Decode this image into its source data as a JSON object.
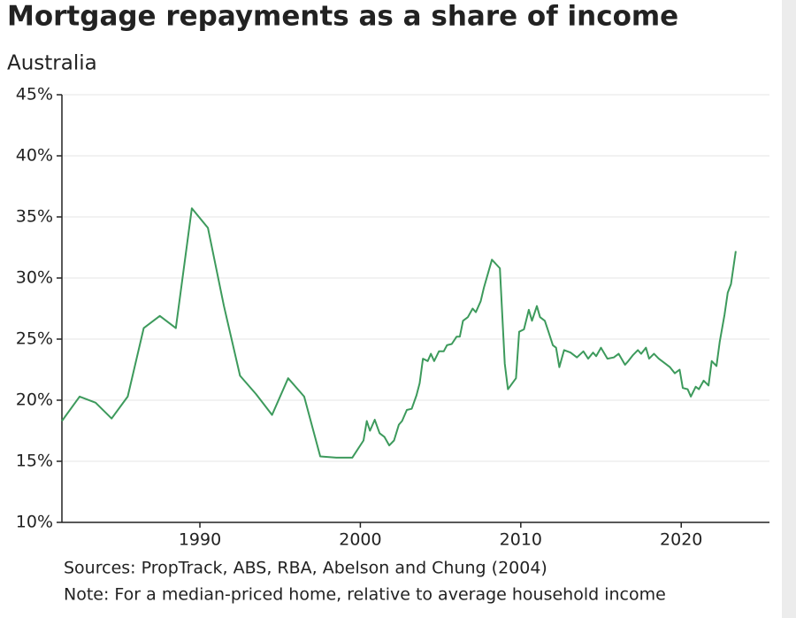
{
  "chart_data": {
    "type": "line",
    "title": "Mortgage repayments as a share of income",
    "subtitle": "Australia",
    "notes": [
      "Sources: PropTrack, ABS, RBA, Abelson and Chung (2004)",
      "Note: For a median-priced home, relative to average household income"
    ],
    "xlim": [
      1981.4,
      2025.5
    ],
    "xticks": [
      1990,
      2000,
      2010,
      2020
    ],
    "ylim": [
      10,
      45
    ],
    "yticks": [
      {
        "value": 10,
        "label": "10%"
      },
      {
        "value": 15,
        "label": "15%"
      },
      {
        "value": 20,
        "label": "20%"
      },
      {
        "value": 25,
        "label": "25%"
      },
      {
        "value": 30,
        "label": "30%"
      },
      {
        "value": 35,
        "label": "35%"
      },
      {
        "value": 40,
        "label": "40%"
      },
      {
        "value": 45,
        "label": "45%"
      }
    ],
    "grid": true,
    "series": [
      {
        "color": "#3d9a5c",
        "x": [
          1981.4,
          1982.5,
          1983.5,
          1984.5,
          1985.5,
          1986.5,
          1987.5,
          1988.5,
          1989.5,
          1990.5,
          1991.5,
          1992.5,
          1993.5,
          1994.5,
          1995.5,
          1996.5,
          1997.5,
          1998.5,
          1999.5,
          2000.2,
          2000.4,
          2000.6,
          2000.9,
          2001.2,
          2001.5,
          2001.8,
          2002.1,
          2002.4,
          2002.6,
          2002.9,
          2003.2,
          2003.5,
          2003.7,
          2003.9,
          2004.2,
          2004.4,
          2004.6,
          2004.9,
          2005.2,
          2005.4,
          2005.7,
          2006.0,
          2006.2,
          2006.4,
          2006.7,
          2007.0,
          2007.2,
          2007.5,
          2007.7,
          2008.2,
          2008.7,
          2009.0,
          2009.2,
          2009.7,
          2009.9,
          2010.2,
          2010.5,
          2010.7,
          2011.0,
          2011.2,
          2011.5,
          2011.7,
          2012.0,
          2012.2,
          2012.4,
          2012.7,
          2013.1,
          2013.5,
          2013.9,
          2014.2,
          2014.5,
          2014.7,
          2015.0,
          2015.4,
          2015.8,
          2016.1,
          2016.5,
          2016.7,
          2017.0,
          2017.3,
          2017.5,
          2017.8,
          2018.0,
          2018.3,
          2018.6,
          2019.0,
          2019.3,
          2019.6,
          2019.9,
          2020.1,
          2020.4,
          2020.6,
          2020.9,
          2021.1,
          2021.4,
          2021.7,
          2021.9,
          2022.2,
          2022.4,
          2022.7,
          2022.9,
          2023.1,
          2023.4
        ],
        "values": [
          18.3,
          20.3,
          19.8,
          18.5,
          20.3,
          25.9,
          26.9,
          25.9,
          35.7,
          34.1,
          27.7,
          22.0,
          20.5,
          18.8,
          21.8,
          20.3,
          15.4,
          15.3,
          15.3,
          16.7,
          18.3,
          17.5,
          18.4,
          17.3,
          17.0,
          16.3,
          16.7,
          18.0,
          18.3,
          19.2,
          19.3,
          20.4,
          21.4,
          23.4,
          23.2,
          23.8,
          23.2,
          24.0,
          24.0,
          24.5,
          24.6,
          25.2,
          25.2,
          26.5,
          26.8,
          27.5,
          27.2,
          28.1,
          29.2,
          31.5,
          30.8,
          23.0,
          20.9,
          21.8,
          25.6,
          25.8,
          27.4,
          26.5,
          27.7,
          26.8,
          26.5,
          25.7,
          24.5,
          24.3,
          22.7,
          24.1,
          23.9,
          23.5,
          24.0,
          23.4,
          23.9,
          23.6,
          24.3,
          23.4,
          23.5,
          23.8,
          22.9,
          23.2,
          23.7,
          24.1,
          23.8,
          24.3,
          23.4,
          23.8,
          23.4,
          23.0,
          22.7,
          22.2,
          22.5,
          21.0,
          20.9,
          20.3,
          21.1,
          20.9,
          21.6,
          21.2,
          23.2,
          22.8,
          24.8,
          27.0,
          28.8,
          29.5,
          32.2
        ]
      }
    ]
  }
}
